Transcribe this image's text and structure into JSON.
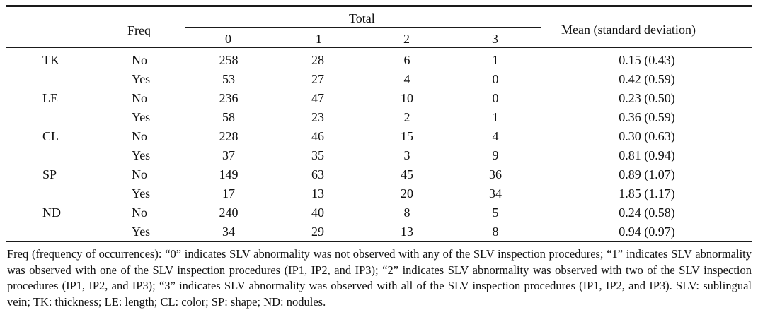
{
  "table": {
    "header": {
      "freq": "Freq",
      "total": "Total",
      "mean": "Mean (standard deviation)",
      "columns": [
        "0",
        "1",
        "2",
        "3"
      ]
    },
    "rows": [
      {
        "cat": "TK",
        "freq": "No",
        "c0": "258",
        "c1": "28",
        "c2": "6",
        "c3": "1",
        "mean": "0.15 (0.43)"
      },
      {
        "cat": "",
        "freq": "Yes",
        "c0": "53",
        "c1": "27",
        "c2": "4",
        "c3": "0",
        "mean": "0.42 (0.59)"
      },
      {
        "cat": "LE",
        "freq": "No",
        "c0": "236",
        "c1": "47",
        "c2": "10",
        "c3": "0",
        "mean": "0.23 (0.50)"
      },
      {
        "cat": "",
        "freq": "Yes",
        "c0": "58",
        "c1": "23",
        "c2": "2",
        "c3": "1",
        "mean": "0.36 (0.59)"
      },
      {
        "cat": "CL",
        "freq": "No",
        "c0": "228",
        "c1": "46",
        "c2": "15",
        "c3": "4",
        "mean": "0.30 (0.63)"
      },
      {
        "cat": "",
        "freq": "Yes",
        "c0": "37",
        "c1": "35",
        "c2": "3",
        "c3": "9",
        "mean": "0.81 (0.94)"
      },
      {
        "cat": "SP",
        "freq": "No",
        "c0": "149",
        "c1": "63",
        "c2": "45",
        "c3": "36",
        "mean": "0.89 (1.07)"
      },
      {
        "cat": "",
        "freq": "Yes",
        "c0": "17",
        "c1": "13",
        "c2": "20",
        "c3": "34",
        "mean": "1.85 (1.17)"
      },
      {
        "cat": "ND",
        "freq": "No",
        "c0": "240",
        "c1": "40",
        "c2": "8",
        "c3": "5",
        "mean": "0.24 (0.58)"
      },
      {
        "cat": "",
        "freq": "Yes",
        "c0": "34",
        "c1": "29",
        "c2": "13",
        "c3": "8",
        "mean": "0.94 (0.97)"
      }
    ]
  },
  "footnote": "Freq (frequency of occurrences): “0” indicates SLV abnormality was not observed with any of the SLV inspection procedures; “1” indicates SLV abnormality was observed with one of the SLV inspection procedures (IP1, IP2, and IP3); “2” indicates SLV abnormality was observed with two of the SLV inspection procedures (IP1, IP2, and IP3); “3” indicates SLV abnormality was observed with all of the SLV inspection procedures (IP1, IP2, and IP3). SLV: sublingual vein; TK: thickness; LE: length; CL: color; SP: shape; ND: nodules."
}
